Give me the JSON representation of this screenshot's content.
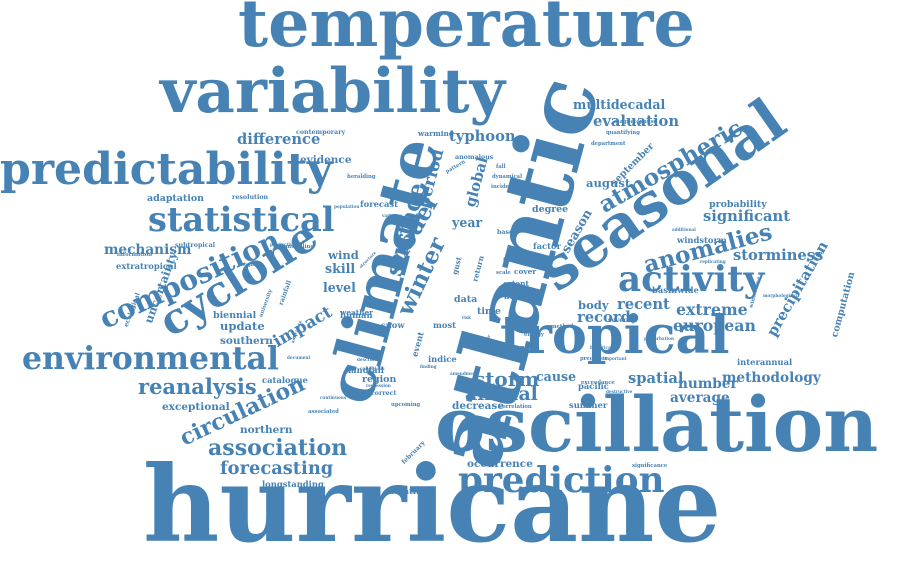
{
  "style": {
    "word_color": "#4682b4",
    "background": "#ffffff"
  },
  "words": [
    {
      "text": "hurricane",
      "weight": 100,
      "rotate": 0
    },
    {
      "text": "atlantic",
      "weight": 88,
      "rotate": -75
    },
    {
      "text": "oscillation",
      "weight": 72,
      "rotate": 0
    },
    {
      "text": "temperature",
      "weight": 62,
      "rotate": 0
    },
    {
      "text": "variability",
      "weight": 58,
      "rotate": 0
    },
    {
      "text": "climate",
      "weight": 62,
      "rotate": -75
    },
    {
      "text": "seasonal",
      "weight": 56,
      "rotate": -35
    },
    {
      "text": "tropical",
      "weight": 50,
      "rotate": 0
    },
    {
      "text": "predictability",
      "weight": 42,
      "rotate": 0
    },
    {
      "text": "cyclone",
      "weight": 40,
      "rotate": -32
    },
    {
      "text": "environmental",
      "weight": 30,
      "rotate": 0
    },
    {
      "text": "prediction",
      "weight": 34,
      "rotate": 0
    },
    {
      "text": "statistical",
      "weight": 32,
      "rotate": 0
    },
    {
      "text": "activity",
      "weight": 34,
      "rotate": 0
    },
    {
      "text": "composition",
      "weight": 27,
      "rotate": -25
    },
    {
      "text": "atmospheric",
      "weight": 22,
      "rotate": -30
    },
    {
      "text": "anomalies",
      "weight": 22,
      "rotate": -15
    },
    {
      "text": "circulation",
      "weight": 21,
      "rotate": -25
    },
    {
      "text": "association",
      "weight": 21,
      "rotate": 0
    },
    {
      "text": "reanalysis",
      "weight": 20,
      "rotate": 0
    },
    {
      "text": "forecasting",
      "weight": 17,
      "rotate": 0
    },
    {
      "text": "surface",
      "weight": 22,
      "rotate": -75
    },
    {
      "text": "model",
      "weight": 22,
      "rotate": -60
    },
    {
      "text": "winter",
      "weight": 22,
      "rotate": -65
    },
    {
      "text": "storm",
      "weight": 19,
      "rotate": 0
    },
    {
      "text": "annual",
      "weight": 18,
      "rotate": 0
    },
    {
      "text": "european",
      "weight": 15,
      "rotate": 0
    },
    {
      "text": "extreme",
      "weight": 15,
      "rotate": 0
    },
    {
      "text": "record",
      "weight": 14,
      "rotate": 0
    },
    {
      "text": "recent",
      "weight": 14,
      "rotate": 0
    },
    {
      "text": "significant",
      "weight": 14,
      "rotate": 0
    },
    {
      "text": "storminess",
      "weight": 14,
      "rotate": 0
    },
    {
      "text": "precipitation",
      "weight": 14,
      "rotate": -60
    },
    {
      "text": "methodology",
      "weight": 13,
      "rotate": 0
    },
    {
      "text": "number",
      "weight": 13,
      "rotate": 0
    },
    {
      "text": "average",
      "weight": 13,
      "rotate": 0
    },
    {
      "text": "spatial",
      "weight": 14,
      "rotate": 0
    },
    {
      "text": "cause",
      "weight": 12,
      "rotate": 0
    },
    {
      "text": "season",
      "weight": 12,
      "rotate": -60
    },
    {
      "text": "period",
      "weight": 16,
      "rotate": -75
    },
    {
      "text": "global",
      "weight": 14,
      "rotate": -75
    },
    {
      "text": "typhoon",
      "weight": 14,
      "rotate": 0
    },
    {
      "text": "evaluation",
      "weight": 14,
      "rotate": 0
    },
    {
      "text": "multidecadal",
      "weight": 12,
      "rotate": 0
    },
    {
      "text": "difference",
      "weight": 14,
      "rotate": 0
    },
    {
      "text": "evidence",
      "weight": 10,
      "rotate": 0
    },
    {
      "text": "impact",
      "weight": 16,
      "rotate": -30
    },
    {
      "text": "mechanism",
      "weight": 13,
      "rotate": 0
    },
    {
      "text": "extratropical",
      "weight": 8,
      "rotate": 0
    },
    {
      "text": "adaptation",
      "weight": 9,
      "rotate": 0
    },
    {
      "text": "skill",
      "weight": 12,
      "rotate": 0
    },
    {
      "text": "level",
      "weight": 12,
      "rotate": 0
    },
    {
      "text": "wind",
      "weight": 11,
      "rotate": 0
    },
    {
      "text": "year",
      "weight": 12,
      "rotate": 0
    },
    {
      "text": "uncertainty",
      "weight": 11,
      "rotate": -70
    },
    {
      "text": "update",
      "weight": 11,
      "rotate": 0
    },
    {
      "text": "southern",
      "weight": 10,
      "rotate": 0
    },
    {
      "text": "biennial",
      "weight": 9,
      "rotate": 0
    },
    {
      "text": "northern",
      "weight": 10,
      "rotate": 0
    },
    {
      "text": "exceptional",
      "weight": 10,
      "rotate": 0
    },
    {
      "text": "longstanding",
      "weight": 8,
      "rotate": 0
    },
    {
      "text": "volatility",
      "weight": 8,
      "rotate": 0
    },
    {
      "text": "occurrence",
      "weight": 10,
      "rotate": 0
    },
    {
      "text": "decrease",
      "weight": 10,
      "rotate": 0
    },
    {
      "text": "body",
      "weight": 11,
      "rotate": 0
    },
    {
      "text": "august",
      "weight": 11,
      "rotate": 0
    },
    {
      "text": "september",
      "weight": 9,
      "rotate": -45
    },
    {
      "text": "degree",
      "weight": 9,
      "rotate": 0
    },
    {
      "text": "europe",
      "weight": 9,
      "rotate": 0
    },
    {
      "text": "probability",
      "weight": 9,
      "rotate": 0
    },
    {
      "text": "windstorm",
      "weight": 8,
      "rotate": 0
    },
    {
      "text": "basinwide",
      "weight": 8,
      "rotate": 0
    },
    {
      "text": "computation",
      "weight": 9,
      "rotate": -75
    },
    {
      "text": "interannual",
      "weight": 8,
      "rotate": 0
    },
    {
      "text": "summer",
      "weight": 8,
      "rotate": 0
    },
    {
      "text": "pacific",
      "weight": 8,
      "rotate": 0
    },
    {
      "text": "region",
      "weight": 9,
      "rotate": 0
    },
    {
      "text": "landfall",
      "weight": 8,
      "rotate": 0
    },
    {
      "text": "catalogue",
      "weight": 8,
      "rotate": 0
    },
    {
      "text": "data",
      "weight": 9,
      "rotate": 0
    },
    {
      "text": "time",
      "weight": 9,
      "rotate": 0
    },
    {
      "text": "factor",
      "weight": 8,
      "rotate": 0
    },
    {
      "text": "human",
      "weight": 8,
      "rotate": 0
    },
    {
      "text": "weather",
      "weight": 7,
      "rotate": 0
    },
    {
      "text": "snow",
      "weight": 8,
      "rotate": 0
    },
    {
      "text": "most",
      "weight": 8,
      "rotate": 0
    },
    {
      "text": "event",
      "weight": 8,
      "rotate": -75
    },
    {
      "text": "indice",
      "weight": 8,
      "rotate": 0
    },
    {
      "text": "forecast",
      "weight": 8,
      "rotate": 0
    },
    {
      "text": "warming",
      "weight": 7,
      "rotate": 0
    },
    {
      "text": "contemporary",
      "weight": 6,
      "rotate": 0
    },
    {
      "text": "resolution",
      "weight": 6,
      "rotate": 0
    },
    {
      "text": "subtropical",
      "weight": 6,
      "rotate": 0
    },
    {
      "text": "information",
      "weight": 5,
      "rotate": 0
    },
    {
      "text": "anomalous",
      "weight": 6,
      "rotate": 0
    },
    {
      "text": "dynamical",
      "weight": 5,
      "rotate": 0
    },
    {
      "text": "department",
      "weight": 5,
      "rotate": 0
    },
    {
      "text": "quantifying",
      "weight": 5,
      "rotate": 0
    },
    {
      "text": "magnetopause",
      "weight": 5,
      "rotate": 0
    },
    {
      "text": "heralding",
      "weight": 5,
      "rotate": 0
    },
    {
      "text": "incidence",
      "weight": 5,
      "rotate": 0
    },
    {
      "text": "fall",
      "weight": 5,
      "rotate": 0
    },
    {
      "text": "field",
      "weight": 7,
      "rotate": 0
    },
    {
      "text": "extent",
      "weight": 7,
      "rotate": 0
    },
    {
      "text": "cover",
      "weight": 7,
      "rotate": 0
    },
    {
      "text": "based",
      "weight": 6,
      "rotate": 0
    },
    {
      "text": "severity",
      "weight": 6,
      "rotate": 0
    },
    {
      "text": "method",
      "weight": 5,
      "rotate": 0
    },
    {
      "text": "predictor",
      "weight": 5,
      "rotate": 0
    },
    {
      "text": "exceedance",
      "weight": 5,
      "rotate": 0
    },
    {
      "text": "correlation",
      "weight": 5,
      "rotate": 0
    },
    {
      "text": "significance",
      "weight": 5,
      "rotate": 0
    },
    {
      "text": "february",
      "weight": 6,
      "rotate": -45
    },
    {
      "text": "incorrect",
      "weight": 6,
      "rotate": 0
    },
    {
      "text": "upcoming",
      "weight": 5,
      "rotate": 0
    },
    {
      "text": "continuous",
      "weight": 4,
      "rotate": 0
    },
    {
      "text": "associated",
      "weight": 5,
      "rotate": 0
    },
    {
      "text": "productivity",
      "weight": 4,
      "rotate": 0
    },
    {
      "text": "wintertime",
      "weight": 5,
      "rotate": -75
    },
    {
      "text": "gust",
      "weight": 7,
      "rotate": -75
    },
    {
      "text": "return",
      "weight": 7,
      "rotate": -75
    },
    {
      "text": "ecological",
      "weight": 6,
      "rotate": -70
    },
    {
      "text": "university",
      "weight": 5,
      "rotate": -70
    },
    {
      "text": "rainfall",
      "weight": 6,
      "rotate": -70
    },
    {
      "text": "anticipate",
      "weight": 4,
      "rotate": -70
    },
    {
      "text": "bergmann",
      "weight": 4,
      "rotate": 0
    },
    {
      "text": "population",
      "weight": 4,
      "rotate": 0
    },
    {
      "text": "transfer",
      "weight": 4,
      "rotate": 0
    },
    {
      "text": "perturbation",
      "weight": 4,
      "rotate": 0
    },
    {
      "text": "replicating",
      "weight": 4,
      "rotate": 0
    },
    {
      "text": "landfalling",
      "weight": 5,
      "rotate": 0
    },
    {
      "text": "additional",
      "weight": 4,
      "rotate": 0
    },
    {
      "text": "scale",
      "weight": 5,
      "rotate": 0
    },
    {
      "text": "energy",
      "weight": 5,
      "rotate": 0
    },
    {
      "text": "important",
      "weight": 4,
      "rotate": 0
    },
    {
      "text": "destructive",
      "weight": 4,
      "rotate": 0
    },
    {
      "text": "regression",
      "weight": 4,
      "rotate": 0
    },
    {
      "text": "finding",
      "weight": 4,
      "rotate": 0
    },
    {
      "text": "describe",
      "weight": 4,
      "rotate": 0
    },
    {
      "text": "document",
      "weight": 4,
      "rotate": 0
    },
    {
      "text": "conditions",
      "weight": 4,
      "rotate": 0
    },
    {
      "text": "pattern",
      "weight": 5,
      "rotate": -30
    },
    {
      "text": "variance",
      "weight": 4,
      "rotate": 0
    },
    {
      "text": "structure",
      "weight": 4,
      "rotate": -45
    },
    {
      "text": "center",
      "weight": 4,
      "rotate": -75
    },
    {
      "text": "risk",
      "weight": 4,
      "rotate": 0
    },
    {
      "text": "historical",
      "weight": 4,
      "rotate": 0
    },
    {
      "text": "morphological",
      "weight": 4,
      "rotate": 0
    },
    {
      "text": "amendment",
      "weight": 4,
      "rotate": 0
    }
  ]
}
